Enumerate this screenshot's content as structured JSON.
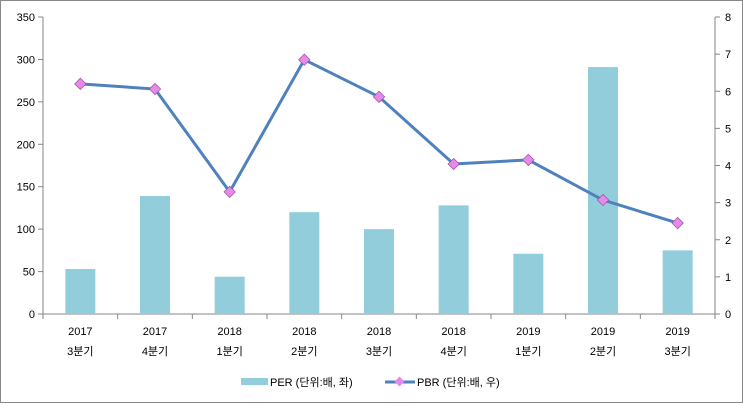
{
  "chart_data": {
    "type": "bar+line",
    "categories": [
      [
        "2017",
        "3분기"
      ],
      [
        "2017",
        "4분기"
      ],
      [
        "2018",
        "1분기"
      ],
      [
        "2018",
        "2분기"
      ],
      [
        "2018",
        "3분기"
      ],
      [
        "2018",
        "4분기"
      ],
      [
        "2019",
        "1분기"
      ],
      [
        "2019",
        "2분기"
      ],
      [
        "2019",
        "3분기"
      ]
    ],
    "series": [
      {
        "name": "PER (단위:배, 좌)",
        "type": "bar",
        "axis": "left",
        "color": "#92CDDC",
        "values": [
          53,
          139,
          44,
          120,
          100,
          128,
          71,
          291,
          75
        ]
      },
      {
        "name": "PBR (단위:배, 우)",
        "type": "line",
        "axis": "right",
        "color": "#4F81BD",
        "marker_color": "#E58AE8",
        "values": [
          6.2,
          6.06,
          3.29,
          6.85,
          5.85,
          4.04,
          4.15,
          3.07,
          2.45
        ]
      }
    ],
    "left_axis": {
      "min": 0,
      "max": 350,
      "step": 50,
      "ticks": [
        "0",
        "50",
        "100",
        "150",
        "200",
        "250",
        "300",
        "350"
      ]
    },
    "right_axis": {
      "min": 0,
      "max": 8,
      "step": 1,
      "ticks": [
        "0",
        "1",
        "2",
        "3",
        "4",
        "5",
        "6",
        "7",
        "8"
      ]
    },
    "legend": "bottom",
    "grid": false
  }
}
